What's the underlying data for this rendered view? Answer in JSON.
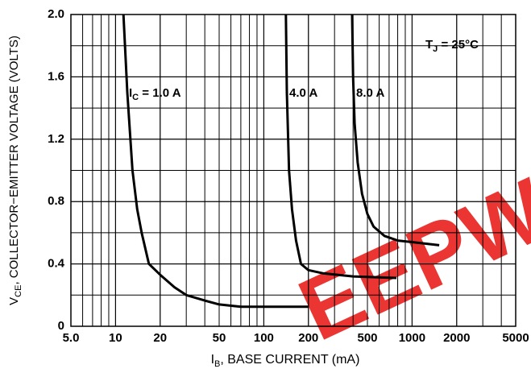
{
  "chart_data": {
    "type": "line",
    "watermark": "EEPW",
    "x_label": {
      "main": "I",
      "sub": "B",
      "rest": ", BASE CURRENT (mA)"
    },
    "y_label": {
      "main": "V",
      "sub": "CE",
      "rest": ", COLLECTOR−EMITTER VOLTAGE (VOLTS)"
    },
    "annotation": {
      "main": "T",
      "sub": "J",
      "rest": " = 25°C"
    },
    "series_prefix": {
      "main": "I",
      "sub": "C",
      "rest": " = "
    },
    "xscale": "log",
    "grid": true,
    "xlim": [
      5,
      5000
    ],
    "ylim": [
      0,
      2
    ],
    "xticks": [
      {
        "value": 5,
        "label": "5.0"
      },
      10,
      20,
      50,
      100,
      200,
      500,
      1000,
      2000,
      5000
    ],
    "yticks": [
      0,
      0.4,
      0.8,
      1.2,
      1.6,
      {
        "value": 2,
        "label": "2.0"
      }
    ],
    "series": [
      {
        "name": "1.0 A",
        "color": "#000000",
        "x": [
          11.3,
          12,
          13,
          14,
          15,
          16.8,
          20,
          25,
          30,
          40,
          50,
          70,
          100,
          200
        ],
        "values": [
          2.0,
          1.5,
          1.0,
          0.75,
          0.6,
          0.4,
          0.33,
          0.25,
          0.2,
          0.165,
          0.14,
          0.125,
          0.125,
          0.125
        ]
      },
      {
        "name": "4.0 A",
        "color": "#000000",
        "x": [
          141,
          143,
          148,
          155,
          165,
          178,
          200,
          250,
          400,
          785
        ],
        "values": [
          2.0,
          1.5,
          1.0,
          0.75,
          0.55,
          0.4,
          0.36,
          0.34,
          0.32,
          0.31
        ]
      },
      {
        "name": "8.0 A",
        "color": "#000000",
        "x": [
          394,
          400,
          410,
          430,
          460,
          500,
          550,
          650,
          800,
          1000,
          1524
        ],
        "values": [
          2.0,
          1.6,
          1.3,
          1.05,
          0.85,
          0.72,
          0.64,
          0.58,
          0.55,
          0.54,
          0.52
        ]
      }
    ]
  }
}
